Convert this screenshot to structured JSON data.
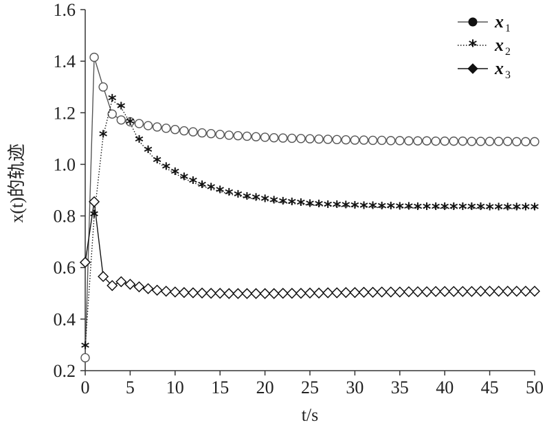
{
  "chart_data": {
    "type": "line",
    "xlabel": "t/s",
    "ylabel": "x(t)的轨迹",
    "xlim": [
      0,
      50
    ],
    "ylim": [
      0.2,
      1.6
    ],
    "xticks": [
      "0",
      "5",
      "10",
      "15",
      "20",
      "25",
      "30",
      "35",
      "40",
      "45",
      "50"
    ],
    "yticks": [
      "0.2",
      "0.4",
      "0.6",
      "0.8",
      "1.0",
      "1.2",
      "1.4",
      "1.6"
    ],
    "grid": false,
    "legend_position": "top-right",
    "series": [
      {
        "name": "x",
        "subscript": "1",
        "marker": "circle",
        "line_style": "solid",
        "color": "#555555",
        "x": [
          0,
          1,
          2,
          3,
          4,
          5,
          6,
          7,
          8,
          9,
          10,
          11,
          12,
          13,
          14,
          15,
          16,
          17,
          18,
          19,
          20,
          21,
          22,
          23,
          24,
          25,
          26,
          27,
          28,
          29,
          30,
          31,
          32,
          33,
          34,
          35,
          36,
          37,
          38,
          39,
          40,
          41,
          42,
          43,
          44,
          45,
          46,
          47,
          48,
          49,
          50
        ],
        "values": [
          0.25,
          1.415,
          1.3,
          1.195,
          1.172,
          1.165,
          1.158,
          1.15,
          1.145,
          1.14,
          1.135,
          1.13,
          1.126,
          1.122,
          1.119,
          1.116,
          1.113,
          1.111,
          1.109,
          1.107,
          1.105,
          1.103,
          1.102,
          1.101,
          1.1,
          1.099,
          1.098,
          1.097,
          1.096,
          1.095,
          1.094,
          1.094,
          1.093,
          1.093,
          1.092,
          1.092,
          1.091,
          1.091,
          1.091,
          1.09,
          1.09,
          1.09,
          1.09,
          1.089,
          1.089,
          1.089,
          1.089,
          1.089,
          1.088,
          1.088,
          1.088
        ]
      },
      {
        "name": "x",
        "subscript": "2",
        "marker": "star",
        "line_style": "dotted",
        "color": "#111111",
        "x": [
          0,
          1,
          2,
          3,
          4,
          5,
          6,
          7,
          8,
          9,
          10,
          11,
          12,
          13,
          14,
          15,
          16,
          17,
          18,
          19,
          20,
          21,
          22,
          23,
          24,
          25,
          26,
          27,
          28,
          29,
          30,
          31,
          32,
          33,
          34,
          35,
          36,
          37,
          38,
          39,
          40,
          41,
          42,
          43,
          44,
          45,
          46,
          47,
          48,
          49,
          50
        ],
        "values": [
          0.29,
          0.8,
          1.11,
          1.25,
          1.22,
          1.16,
          1.09,
          1.05,
          1.01,
          0.985,
          0.965,
          0.945,
          0.93,
          0.915,
          0.905,
          0.895,
          0.885,
          0.878,
          0.87,
          0.865,
          0.86,
          0.855,
          0.851,
          0.848,
          0.845,
          0.842,
          0.84,
          0.838,
          0.837,
          0.836,
          0.835,
          0.834,
          0.833,
          0.832,
          0.832,
          0.831,
          0.831,
          0.83,
          0.83,
          0.83,
          0.829,
          0.829,
          0.829,
          0.829,
          0.829,
          0.828,
          0.828,
          0.828,
          0.828,
          0.828,
          0.828
        ]
      },
      {
        "name": "x",
        "subscript": "3",
        "marker": "diamond",
        "line_style": "solid",
        "color": "#111111",
        "x": [
          0,
          1,
          2,
          3,
          4,
          5,
          6,
          7,
          8,
          9,
          10,
          11,
          12,
          13,
          14,
          15,
          16,
          17,
          18,
          19,
          20,
          21,
          22,
          23,
          24,
          25,
          26,
          27,
          28,
          29,
          30,
          31,
          32,
          33,
          34,
          35,
          36,
          37,
          38,
          39,
          40,
          41,
          42,
          43,
          44,
          45,
          46,
          47,
          48,
          49,
          50
        ],
        "values": [
          0.62,
          0.855,
          0.565,
          0.53,
          0.545,
          0.535,
          0.525,
          0.518,
          0.512,
          0.508,
          0.505,
          0.503,
          0.502,
          0.501,
          0.5,
          0.5,
          0.499,
          0.499,
          0.499,
          0.499,
          0.499,
          0.499,
          0.5,
          0.5,
          0.5,
          0.501,
          0.501,
          0.502,
          0.502,
          0.503,
          0.503,
          0.504,
          0.504,
          0.505,
          0.505,
          0.505,
          0.506,
          0.506,
          0.506,
          0.507,
          0.507,
          0.507,
          0.507,
          0.507,
          0.508,
          0.508,
          0.508,
          0.508,
          0.508,
          0.508,
          0.508
        ]
      }
    ]
  }
}
